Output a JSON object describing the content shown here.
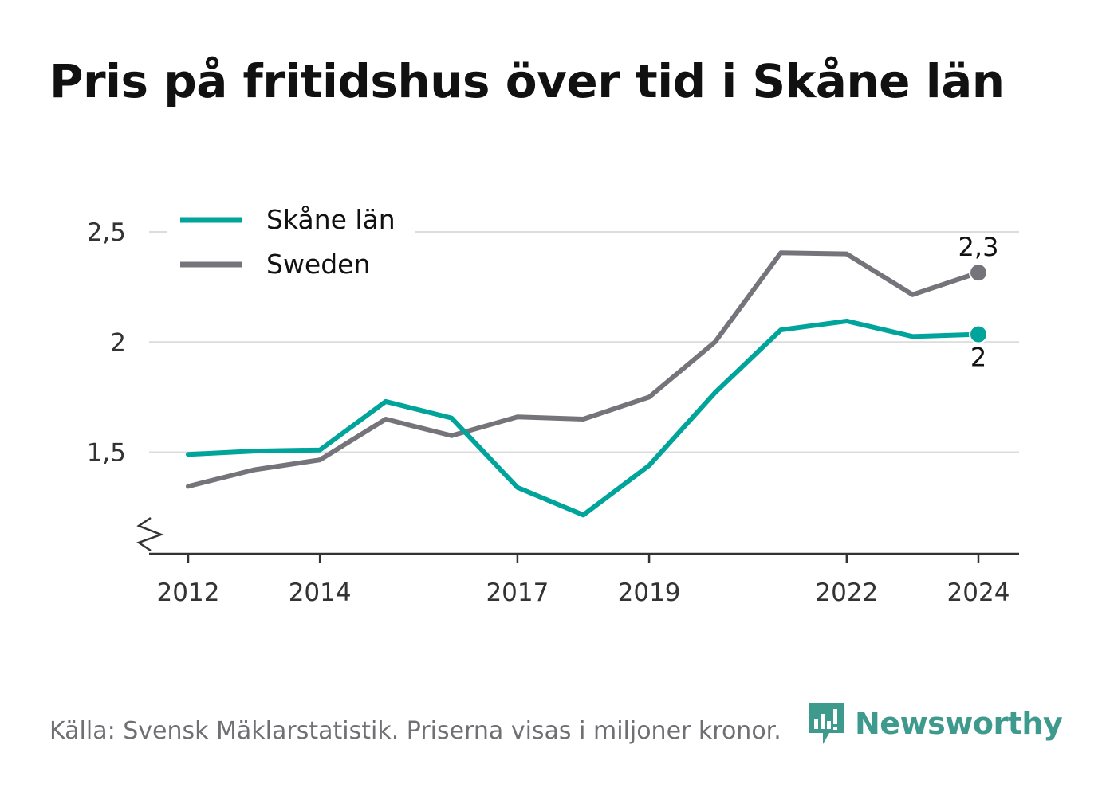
{
  "title": "Pris på fritidshus över tid i Skåne län",
  "source": "Källa: Svensk Mäklarstatistik. Priserna visas i miljoner kronor.",
  "brand": {
    "name": "Newsworthy",
    "icon": "newsworthy-logo-icon",
    "color": "#3d9a8c"
  },
  "chart_data": {
    "type": "line",
    "x": [
      2012,
      2013,
      2014,
      2015,
      2016,
      2017,
      2018,
      2019,
      2020,
      2021,
      2022,
      2023,
      2024
    ],
    "x_ticks": [
      2012,
      2014,
      2017,
      2019,
      2022,
      2024
    ],
    "x_tick_labels": [
      "2012",
      "2014",
      "2017",
      "2019",
      "2022",
      "2024"
    ],
    "y_ticks": [
      1.5,
      2,
      2.5
    ],
    "y_tick_labels": [
      "1,5",
      "2",
      "2,5"
    ],
    "ylim": [
      1.05,
      2.55
    ],
    "grid": true,
    "broken_y_axis": true,
    "legend_position": "top-left",
    "series": [
      {
        "name": "Skåne län",
        "color": "#00a49a",
        "values": [
          1.49,
          1.505,
          1.51,
          1.73,
          1.655,
          1.34,
          1.215,
          1.44,
          1.77,
          2.055,
          2.095,
          2.025,
          2.035
        ],
        "end_label": "2"
      },
      {
        "name": "Sweden",
        "color": "#75747a",
        "values": [
          1.345,
          1.42,
          1.465,
          1.65,
          1.575,
          1.66,
          1.65,
          1.75,
          2.0,
          2.405,
          2.4,
          2.215,
          2.315
        ],
        "end_label": "2,3"
      }
    ]
  }
}
